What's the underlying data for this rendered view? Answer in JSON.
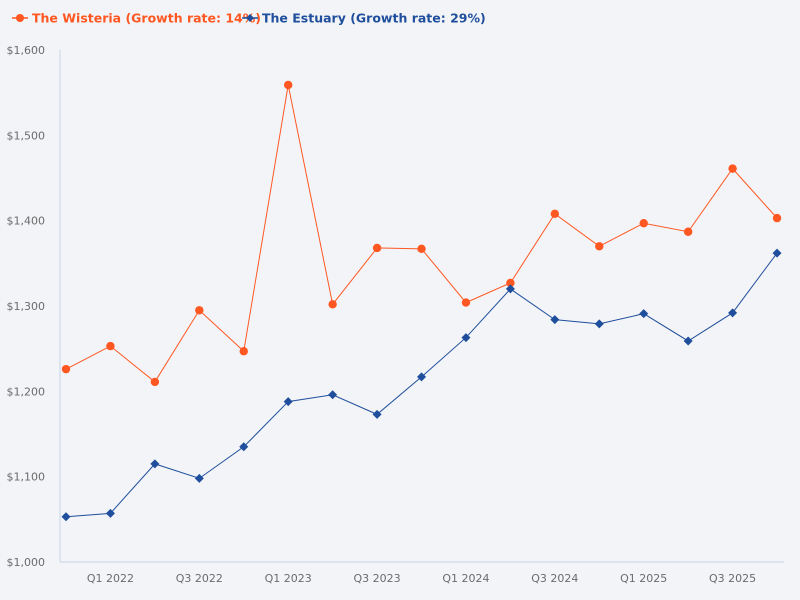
{
  "chart_data": {
    "type": "line",
    "title": "",
    "xlabel": "",
    "ylabel": "",
    "ylim": [
      1000,
      1600
    ],
    "yticks": [
      1000,
      1100,
      1200,
      1300,
      1400,
      1500,
      1600
    ],
    "ytick_labels": [
      "$1,000",
      "$1,100",
      "$1,200",
      "$1,300",
      "$1,400",
      "$1,500",
      "$1,600"
    ],
    "grid": false,
    "legend_position": "top-left",
    "categories": [
      "Q4 2021",
      "Q1 2022",
      "Q2 2022",
      "Q3 2022",
      "Q4 2022",
      "Q1 2023",
      "Q2 2023",
      "Q3 2023",
      "Q4 2023",
      "Q1 2024",
      "Q2 2024",
      "Q3 2024",
      "Q4 2024",
      "Q1 2025",
      "Q2 2025",
      "Q3 2025",
      "Q4 2025"
    ],
    "xtick_labels": [
      {
        "index": 1,
        "label": "Q1 2022"
      },
      {
        "index": 3,
        "label": "Q3 2022"
      },
      {
        "index": 5,
        "label": "Q1 2023"
      },
      {
        "index": 7,
        "label": "Q3 2023"
      },
      {
        "index": 9,
        "label": "Q1 2024"
      },
      {
        "index": 11,
        "label": "Q3 2024"
      },
      {
        "index": 13,
        "label": "Q1 2025"
      },
      {
        "index": 15,
        "label": "Q3 2025"
      }
    ],
    "series": [
      {
        "name": "The Wisteria (Growth rate: 14%)",
        "color": "#ff5722",
        "marker": "circle",
        "values": [
          1226,
          1253,
          1211,
          1295,
          1247,
          1559,
          1302,
          1368,
          1367,
          1304,
          1327,
          1408,
          1370,
          1397,
          1387,
          1461,
          1403
        ]
      },
      {
        "name": "The Estuary (Growth rate: 29%)",
        "color": "#1f4e9c",
        "marker": "diamond",
        "values": [
          1053,
          1057,
          1115,
          1098,
          1135,
          1188,
          1196,
          1173,
          1217,
          1263,
          1320,
          1284,
          1279,
          1291,
          1259,
          1292,
          1362
        ]
      }
    ],
    "axis_color": "#c5d3ea"
  }
}
